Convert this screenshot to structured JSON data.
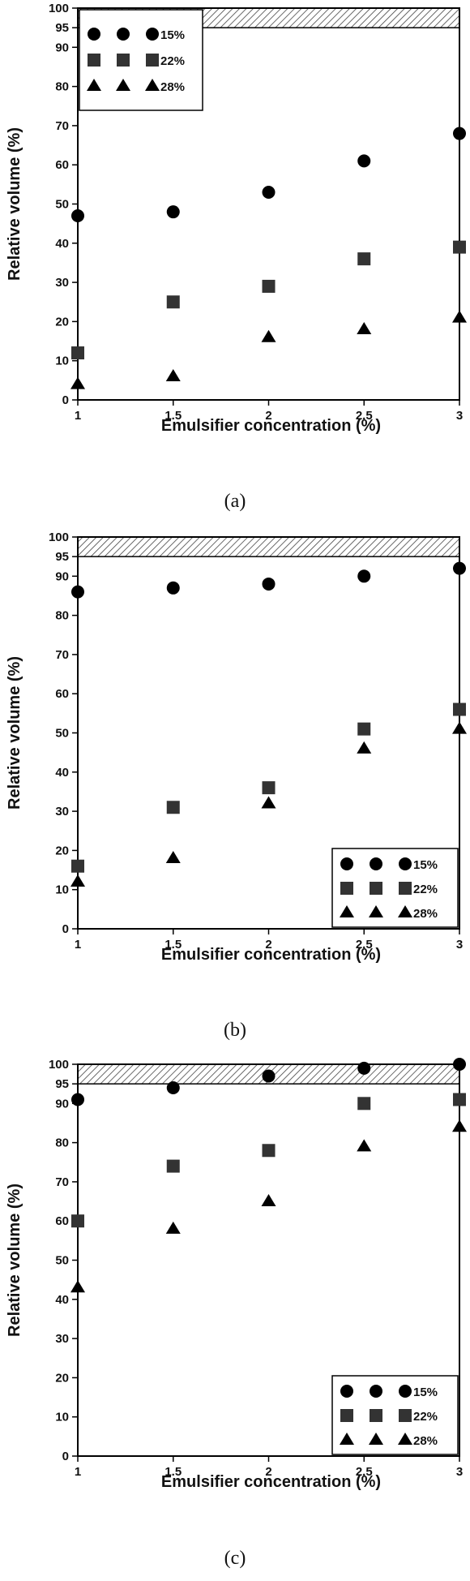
{
  "chart_data": [
    {
      "type": "scatter",
      "caption": "(a)",
      "xlabel": "Emulsifier concentration (%)",
      "ylabel": "Relative volume (%)",
      "x": [
        1,
        1.5,
        2,
        2.5,
        3
      ],
      "x_tick_labels": [
        "1",
        "1.5",
        "2",
        "2.5",
        "3"
      ],
      "xlim": [
        1,
        3
      ],
      "ylim": [
        0,
        100
      ],
      "y_tick_labels": [
        "0",
        "10",
        "20",
        "30",
        "40",
        "50",
        "60",
        "70",
        "80",
        "90",
        "95",
        "100"
      ],
      "shaded_band": [
        95,
        100
      ],
      "legend_position": "top-left",
      "series": [
        {
          "name": "15%",
          "marker": "circle",
          "values": [
            47,
            48,
            53,
            61,
            68
          ]
        },
        {
          "name": "22%",
          "marker": "square",
          "values": [
            12,
            25,
            29,
            36,
            39
          ]
        },
        {
          "name": "28%",
          "marker": "triangle",
          "values": [
            4,
            6,
            16,
            18,
            21
          ]
        }
      ]
    },
    {
      "type": "scatter",
      "caption": "(b)",
      "xlabel": "Emulsifier concentration (%)",
      "ylabel": "Relative volume (%)",
      "x": [
        1,
        1.5,
        2,
        2.5,
        3
      ],
      "x_tick_labels": [
        "1",
        "1.5",
        "2",
        "2.5",
        "3"
      ],
      "xlim": [
        1,
        3
      ],
      "ylim": [
        0,
        100
      ],
      "y_tick_labels": [
        "0",
        "10",
        "20",
        "30",
        "40",
        "50",
        "60",
        "70",
        "80",
        "90",
        "95",
        "100"
      ],
      "shaded_band": [
        95,
        100
      ],
      "legend_position": "bottom-right",
      "series": [
        {
          "name": "15%",
          "marker": "circle",
          "values": [
            86,
            87,
            88,
            90,
            92
          ]
        },
        {
          "name": "22%",
          "marker": "square",
          "values": [
            16,
            31,
            36,
            51,
            56
          ]
        },
        {
          "name": "28%",
          "marker": "triangle",
          "values": [
            12,
            18,
            32,
            46,
            51
          ]
        }
      ]
    },
    {
      "type": "scatter",
      "caption": "(c)",
      "xlabel": "Emulsifier concentration (%)",
      "ylabel": "Relative volume (%)",
      "x": [
        1,
        1.5,
        2,
        2.5,
        3
      ],
      "x_tick_labels": [
        "1",
        "1.5",
        "2",
        "2.5",
        "3"
      ],
      "xlim": [
        1,
        3
      ],
      "ylim": [
        0,
        100
      ],
      "y_tick_labels": [
        "0",
        "10",
        "20",
        "30",
        "40",
        "50",
        "60",
        "70",
        "80",
        "90",
        "95",
        "100"
      ],
      "shaded_band": [
        95,
        100
      ],
      "legend_position": "bottom-right",
      "series": [
        {
          "name": "15%",
          "marker": "circle",
          "values": [
            91,
            94,
            97,
            99,
            100
          ]
        },
        {
          "name": "22%",
          "marker": "square",
          "values": [
            60,
            74,
            78,
            90,
            91
          ]
        },
        {
          "name": "28%",
          "marker": "triangle",
          "values": [
            43,
            58,
            65,
            79,
            84
          ]
        }
      ]
    }
  ]
}
